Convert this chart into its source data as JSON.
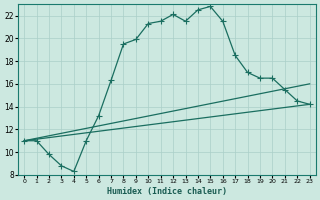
{
  "xlabel": "Humidex (Indice chaleur)",
  "background_color": "#cce8e0",
  "grid_color": "#aacfc8",
  "line_color": "#1a6e60",
  "xlim": [
    -0.5,
    23.5
  ],
  "ylim": [
    8,
    23
  ],
  "yticks": [
    8,
    10,
    12,
    14,
    16,
    18,
    20,
    22
  ],
  "xticks": [
    0,
    1,
    2,
    3,
    4,
    5,
    6,
    7,
    8,
    9,
    10,
    11,
    12,
    13,
    14,
    15,
    16,
    17,
    18,
    19,
    20,
    21,
    22,
    23
  ],
  "series1_x": [
    0,
    1,
    2,
    3,
    4,
    5,
    6,
    7,
    8,
    9,
    10,
    11,
    12,
    13,
    14,
    15,
    16,
    17,
    18,
    19,
    20,
    21,
    22,
    23
  ],
  "series1_y": [
    11.0,
    11.0,
    9.8,
    8.8,
    8.3,
    11.0,
    13.2,
    16.3,
    19.5,
    19.9,
    21.3,
    21.5,
    22.1,
    21.5,
    22.5,
    22.8,
    21.5,
    18.5,
    17.0,
    16.5,
    16.5,
    15.5,
    14.5,
    14.2
  ],
  "series2_x": [
    0,
    23
  ],
  "series2_y": [
    11.0,
    16.0
  ],
  "series3_x": [
    0,
    23
  ],
  "series3_y": [
    11.0,
    14.2
  ]
}
